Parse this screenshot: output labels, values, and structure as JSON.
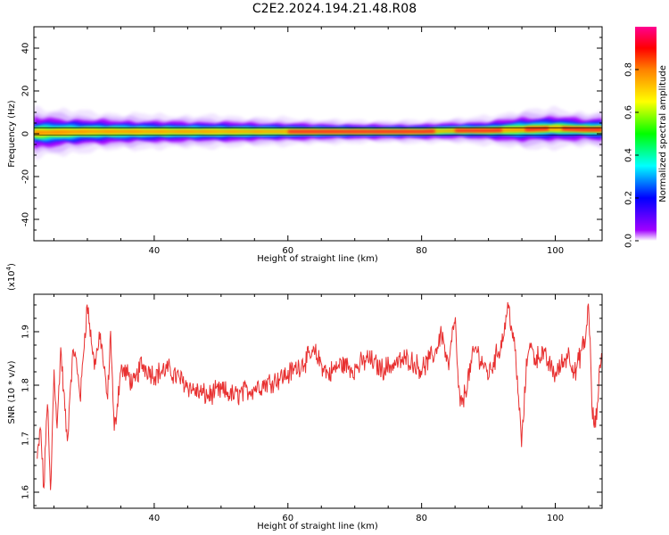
{
  "title": "C2E2.2024.194.21.48.R08",
  "chart_data": [
    {
      "type": "heatmap",
      "xlabel": "Height of straight line (km)",
      "ylabel": "Frequency (Hz)",
      "xlim": [
        22,
        107
      ],
      "ylim": [
        -50,
        50
      ],
      "xticks": [
        40,
        60,
        80,
        100
      ],
      "yticks": [
        -40,
        -20,
        0,
        20,
        40
      ],
      "colorbar": {
        "label": "Normalized spectral amplitude",
        "range": [
          0,
          1
        ],
        "ticks": [
          "0.0",
          "0.2",
          "0.4",
          "0.6",
          "0.8"
        ]
      },
      "ridge": {
        "x": [
          23,
          30,
          40,
          50,
          60,
          70,
          80,
          85,
          90,
          95,
          100,
          105,
          107
        ],
        "center_hz": [
          0.5,
          1.0,
          1.0,
          1.0,
          1.0,
          1.0,
          1.0,
          1.5,
          1.5,
          2.0,
          2.5,
          2.0,
          2.0
        ],
        "halfwidth_hz": [
          4.5,
          3.5,
          3.0,
          2.8,
          2.4,
          2.0,
          2.0,
          2.2,
          2.5,
          3.5,
          3.5,
          3.0,
          3.5
        ]
      }
    },
    {
      "type": "line",
      "xlabel": "Height of straight line (km)",
      "ylabel": "SNR (10 * v/v)",
      "multiplier": "(x10",
      "multiplier_exp": "4",
      "multiplier_close": ")",
      "xlim": [
        22,
        107
      ],
      "ylim": [
        1.57,
        1.97
      ],
      "xticks": [
        40,
        60,
        80,
        100
      ],
      "yticks": [
        1.6,
        1.7,
        1.8,
        1.9
      ],
      "color": "#e83030",
      "series": [
        {
          "x": [
            22.5,
            23.0,
            23.5,
            24.0,
            24.5,
            25.0,
            25.5,
            26.0,
            27.0,
            27.5,
            28.0,
            29.0,
            29.5,
            30.0,
            31.0,
            32.0,
            33.0,
            33.5,
            34.0,
            35.0,
            36.0,
            37.0,
            38.0,
            40.0,
            42.0,
            44.0,
            46.0,
            48.0,
            50.0,
            52.0,
            54.0,
            56.0,
            58.0,
            60.0,
            62.0,
            64.0,
            66.0,
            68.0,
            70.0,
            72.0,
            74.0,
            76.0,
            78.0,
            80.0,
            82.0,
            83.0,
            84.0,
            85.0,
            85.5,
            86.0,
            88.0,
            90.0,
            92.0,
            93.0,
            94.0,
            95.0,
            95.5,
            96.0,
            97.0,
            98.0,
            100.0,
            102.0,
            103.0,
            104.0,
            104.5,
            105.0,
            105.5,
            106.0,
            107.0
          ],
          "y": [
            1.66,
            1.72,
            1.6,
            1.78,
            1.59,
            1.83,
            1.72,
            1.87,
            1.69,
            1.81,
            1.87,
            1.78,
            1.88,
            1.95,
            1.84,
            1.89,
            1.77,
            1.9,
            1.71,
            1.83,
            1.82,
            1.8,
            1.84,
            1.82,
            1.83,
            1.81,
            1.79,
            1.78,
            1.79,
            1.78,
            1.79,
            1.8,
            1.81,
            1.82,
            1.84,
            1.86,
            1.82,
            1.84,
            1.83,
            1.85,
            1.83,
            1.84,
            1.85,
            1.83,
            1.86,
            1.9,
            1.83,
            1.93,
            1.79,
            1.76,
            1.87,
            1.82,
            1.88,
            1.95,
            1.86,
            1.69,
            1.8,
            1.88,
            1.85,
            1.86,
            1.82,
            1.86,
            1.82,
            1.87,
            1.88,
            1.96,
            1.75,
            1.72,
            1.88
          ]
        }
      ]
    }
  ]
}
